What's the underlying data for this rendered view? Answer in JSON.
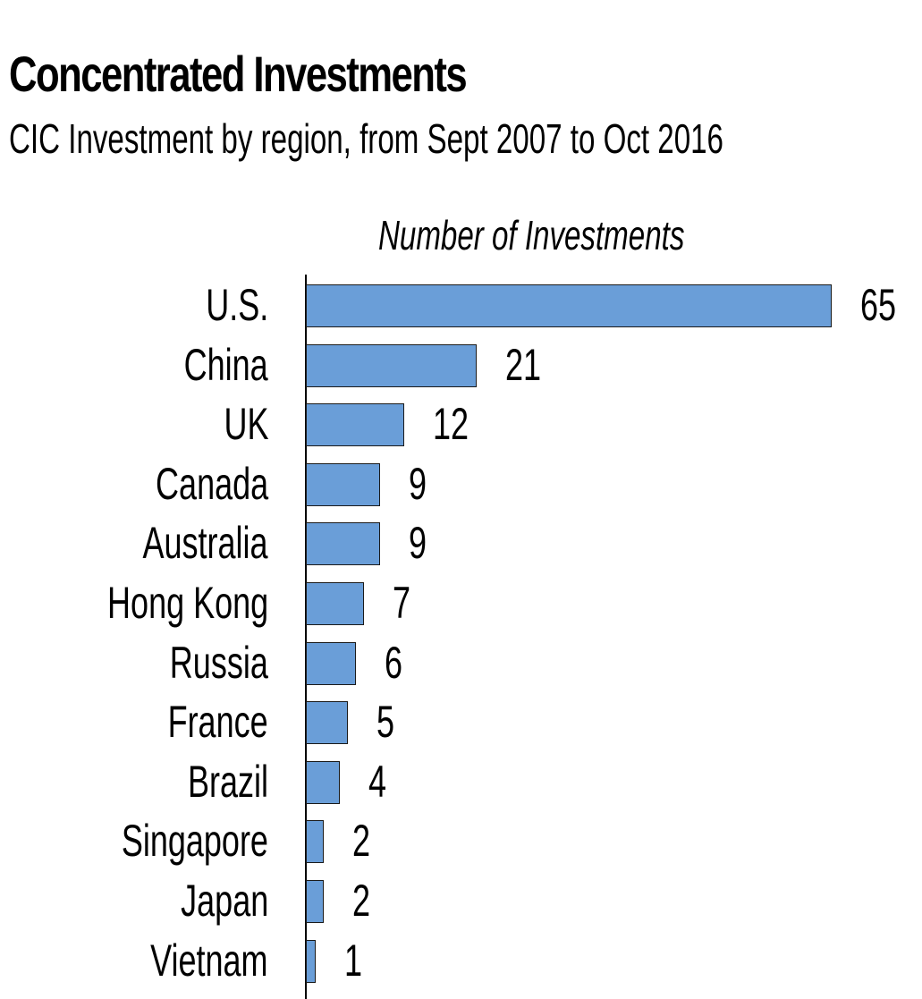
{
  "header": {
    "title": "Concentrated Investments",
    "subtitle": "CIC Investment by region, from Sept 2007 to Oct 2016"
  },
  "axis": {
    "title": "Number of Investments"
  },
  "colors": {
    "bar": "#6a9ed8",
    "bar_border": "#1a1a1a",
    "text": "#000000"
  },
  "rows": [
    {
      "label": "U.S.",
      "value": "65"
    },
    {
      "label": "China",
      "value": "21"
    },
    {
      "label": "UK",
      "value": "12"
    },
    {
      "label": "Canada",
      "value": "9"
    },
    {
      "label": "Australia",
      "value": "9"
    },
    {
      "label": "Hong Kong",
      "value": "7"
    },
    {
      "label": "Russia",
      "value": "6"
    },
    {
      "label": "France",
      "value": "5"
    },
    {
      "label": "Brazil",
      "value": "4"
    },
    {
      "label": "Singapore",
      "value": "2"
    },
    {
      "label": "Japan",
      "value": "2"
    },
    {
      "label": "Vietnam",
      "value": "1"
    }
  ],
  "chart_data": {
    "type": "bar",
    "orientation": "horizontal",
    "title": "Concentrated Investments",
    "subtitle": "CIC Investment by region, from Sept 2007 to Oct 2016",
    "xlabel": "Number of Investments",
    "ylabel": "",
    "categories": [
      "U.S.",
      "China",
      "UK",
      "Canada",
      "Australia",
      "Hong Kong",
      "Russia",
      "France",
      "Brazil",
      "Singapore",
      "Japan",
      "Vietnam"
    ],
    "values": [
      65,
      21,
      12,
      9,
      9,
      7,
      6,
      5,
      4,
      2,
      2,
      1
    ],
    "xlim": [
      0,
      65
    ],
    "grid": false,
    "legend": null,
    "data_labels": true
  }
}
